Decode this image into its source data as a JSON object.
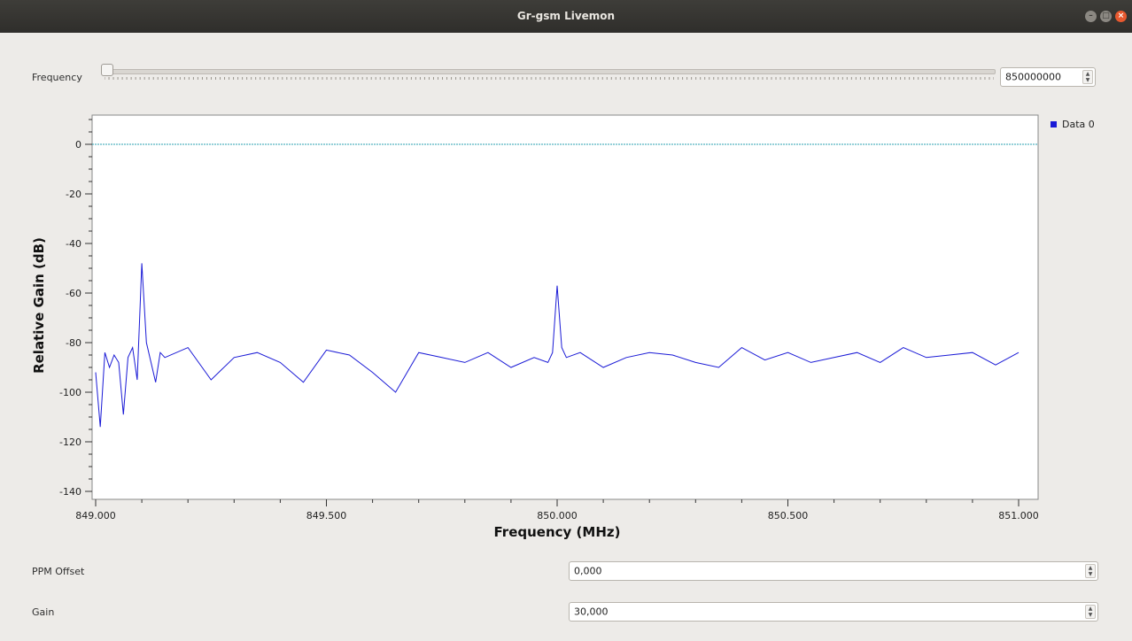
{
  "window": {
    "title": "Gr-gsm Livemon"
  },
  "frequency": {
    "label": "Frequency",
    "value": "850000000",
    "slider_fraction": 0.0
  },
  "ppm": {
    "label": "PPM Offset",
    "value": "0,000"
  },
  "gain": {
    "label": "Gain",
    "value": "30,000"
  },
  "colors": {
    "trace": "#1a1ad6",
    "reference_line": "#29a0b1",
    "plot_bg": "#ffffff"
  },
  "chart_data": {
    "type": "line",
    "xlabel": "Frequency (MHz)",
    "ylabel": "Relative Gain (dB)",
    "xlim": [
      849.0,
      851.0
    ],
    "ylim": [
      -140,
      10
    ],
    "x_ticks": [
      "849.000",
      "849.500",
      "850.000",
      "850.500",
      "851.000"
    ],
    "x_tick_values": [
      849.0,
      849.5,
      850.0,
      850.5,
      851.0
    ],
    "y_ticks": [
      "0",
      "-20",
      "-40",
      "-60",
      "-80",
      "-100",
      "-120",
      "-140"
    ],
    "y_tick_values": [
      0,
      -20,
      -40,
      -60,
      -80,
      -100,
      -120,
      -140
    ],
    "legend": "top-right",
    "grid": false,
    "reference_line": 0,
    "series": [
      {
        "name": "Data 0",
        "x": [
          849.0,
          849.01,
          849.02,
          849.03,
          849.04,
          849.05,
          849.06,
          849.07,
          849.08,
          849.09,
          849.1,
          849.11,
          849.12,
          849.13,
          849.14,
          849.15,
          849.2,
          849.25,
          849.3,
          849.35,
          849.4,
          849.45,
          849.5,
          849.55,
          849.6,
          849.65,
          849.7,
          849.75,
          849.8,
          849.85,
          849.9,
          849.95,
          849.98,
          849.99,
          850.0,
          850.01,
          850.02,
          850.05,
          850.1,
          850.15,
          850.2,
          850.25,
          850.3,
          850.35,
          850.4,
          850.45,
          850.5,
          850.55,
          850.6,
          850.65,
          850.7,
          850.75,
          850.8,
          850.85,
          850.9,
          850.95,
          851.0
        ],
        "y": [
          -92,
          -114,
          -84,
          -90,
          -85,
          -88,
          -109,
          -86,
          -82,
          -95,
          -48,
          -80,
          -88,
          -96,
          -84,
          -86,
          -82,
          -95,
          -86,
          -84,
          -88,
          -96,
          -83,
          -85,
          -92,
          -100,
          -84,
          -86,
          -88,
          -84,
          -90,
          -86,
          -88,
          -84,
          -57,
          -82,
          -86,
          -84,
          -90,
          -86,
          -84,
          -85,
          -88,
          -90,
          -82,
          -87,
          -84,
          -88,
          -86,
          -84,
          -88,
          -82,
          -86,
          -85,
          -84,
          -89,
          -84
        ]
      }
    ]
  }
}
